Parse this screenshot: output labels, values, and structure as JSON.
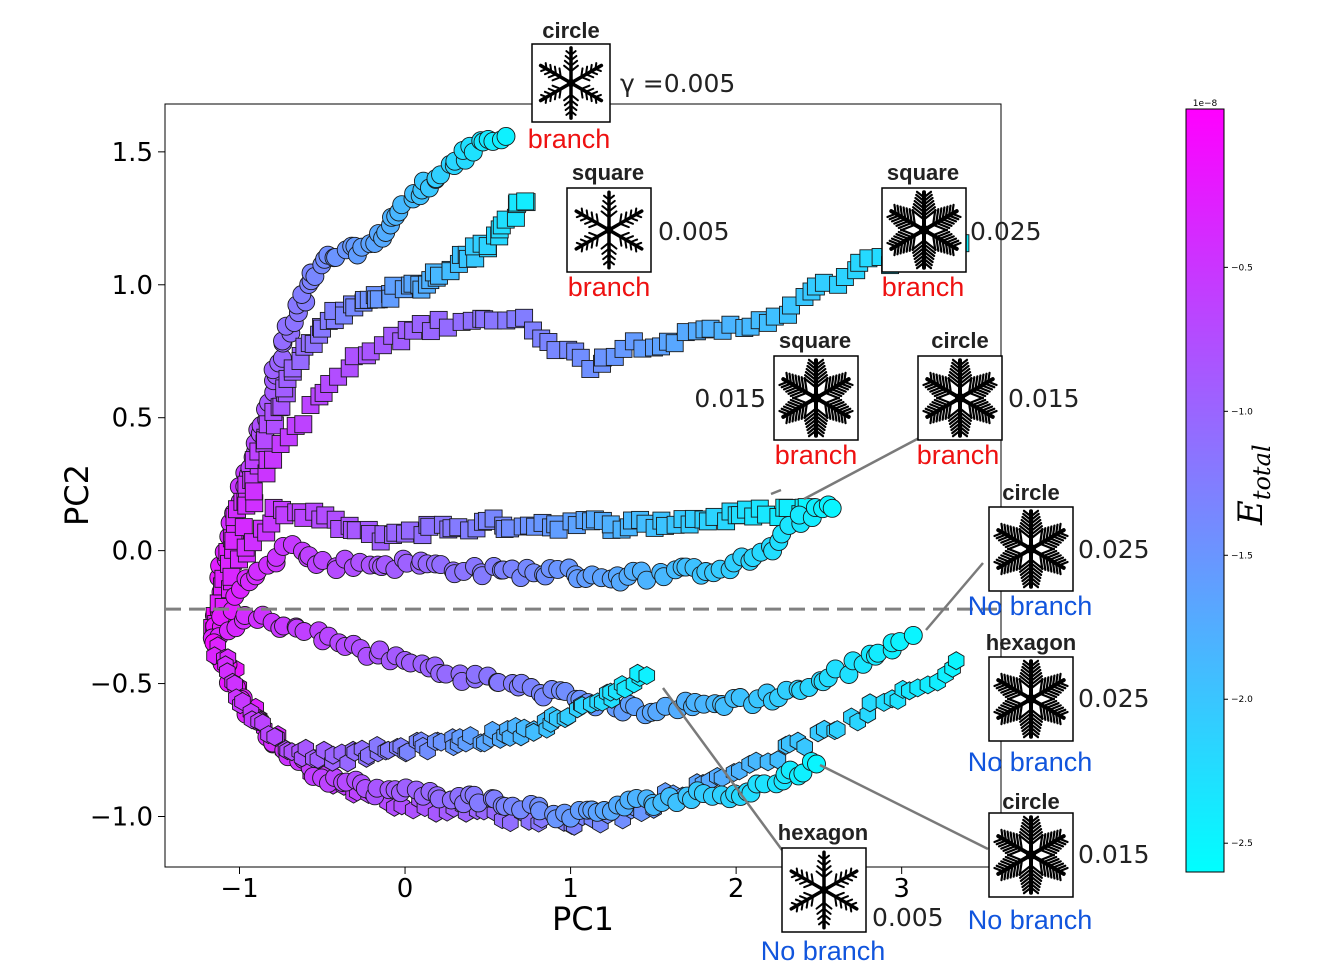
{
  "chart_data": {
    "type": "scatter",
    "xlabel": "PC1",
    "ylabel": "PC2",
    "xlim": [
      -1.45,
      3.6
    ],
    "ylim": [
      -1.19,
      1.68
    ],
    "xticks": [
      "−1",
      "0",
      "1",
      "2",
      "3"
    ],
    "xtick_values": [
      -1,
      0,
      1,
      2,
      3
    ],
    "yticks": [
      "−1.0",
      "−0.5",
      "0.0",
      "0.5",
      "1.0",
      "1.5"
    ],
    "ytick_values": [
      -1.0,
      -0.5,
      0.0,
      0.5,
      1.0,
      1.5
    ],
    "grid": false,
    "threshold_line": {
      "y": -0.22,
      "style": "dashed",
      "color": "#808080"
    },
    "colorbar": {
      "label": "E",
      "label_subscript": "total",
      "offset_text": "1e−8",
      "min": -2.6,
      "max": 0.05,
      "ticks": [
        "−0.5",
        "−1.0",
        "−1.5",
        "−2.0",
        "−2.5"
      ],
      "tick_values": [
        -0.5,
        -1.0,
        -1.5,
        -2.0,
        -2.5
      ],
      "color_low": "#00ffff",
      "color_high": "#ff00ff"
    },
    "series": [
      {
        "marker": "circle",
        "gamma": "γ =0.005",
        "branch": "branch",
        "path": [
          [
            -1.15,
            -0.35
          ],
          [
            -1.1,
            -0.05
          ],
          [
            -1.0,
            0.22
          ],
          [
            -0.85,
            0.5
          ],
          [
            -0.72,
            0.8
          ],
          [
            -0.58,
            1.0
          ],
          [
            -0.45,
            1.1
          ],
          [
            -0.2,
            1.15
          ],
          [
            0.0,
            1.3
          ],
          [
            0.25,
            1.44
          ],
          [
            0.45,
            1.52
          ],
          [
            0.6,
            1.55
          ]
        ],
        "e_start": 0.0,
        "e_end": -2.45
      },
      {
        "marker": "square",
        "gamma": "0.005",
        "branch": "branch",
        "path": [
          [
            -1.15,
            -0.3
          ],
          [
            -1.0,
            0.15
          ],
          [
            -0.85,
            0.4
          ],
          [
            -0.7,
            0.65
          ],
          [
            -0.5,
            0.85
          ],
          [
            -0.2,
            0.95
          ],
          [
            0.1,
            1.0
          ],
          [
            0.3,
            1.08
          ],
          [
            0.5,
            1.15
          ],
          [
            0.62,
            1.25
          ],
          [
            0.75,
            1.33
          ]
        ],
        "e_start": 0.0,
        "e_end": -2.4
      },
      {
        "marker": "square",
        "gamma": "0.025",
        "branch": "branch",
        "path": [
          [
            -1.15,
            -0.3
          ],
          [
            -1.0,
            0.1
          ],
          [
            -0.8,
            0.35
          ],
          [
            -0.55,
            0.55
          ],
          [
            -0.3,
            0.72
          ],
          [
            0.0,
            0.82
          ],
          [
            0.4,
            0.88
          ],
          [
            0.7,
            0.86
          ],
          [
            0.9,
            0.78
          ],
          [
            1.1,
            0.7
          ],
          [
            1.4,
            0.78
          ],
          [
            1.7,
            0.8
          ],
          [
            2.0,
            0.84
          ],
          [
            2.3,
            0.9
          ],
          [
            2.55,
            1.0
          ],
          [
            2.8,
            1.08
          ],
          [
            3.1,
            1.12
          ],
          [
            3.35,
            1.16
          ]
        ],
        "e_start": -0.2,
        "e_end": -2.45
      },
      {
        "marker": "square",
        "gamma": "0.015",
        "branch": "branch",
        "path": [
          [
            -1.15,
            -0.3
          ],
          [
            -1.0,
            -0.05
          ],
          [
            -0.8,
            0.15
          ],
          [
            -0.5,
            0.12
          ],
          [
            -0.2,
            0.05
          ],
          [
            0.1,
            0.08
          ],
          [
            0.5,
            0.1
          ],
          [
            1.0,
            0.1
          ],
          [
            1.5,
            0.1
          ],
          [
            2.0,
            0.13
          ],
          [
            2.3,
            0.15
          ],
          [
            2.45,
            0.16
          ]
        ],
        "e_start": -0.2,
        "e_end": -2.5
      },
      {
        "marker": "circle",
        "gamma": "0.015",
        "branch": "branch",
        "path": [
          [
            -1.15,
            -0.3
          ],
          [
            -0.95,
            -0.1
          ],
          [
            -0.7,
            0.02
          ],
          [
            -0.5,
            -0.05
          ],
          [
            -0.2,
            -0.05
          ],
          [
            0.1,
            -0.05
          ],
          [
            0.5,
            -0.08
          ],
          [
            0.9,
            -0.08
          ],
          [
            1.3,
            -0.1
          ],
          [
            1.7,
            -0.08
          ],
          [
            2.0,
            -0.05
          ],
          [
            2.25,
            0.02
          ],
          [
            2.45,
            0.15
          ],
          [
            2.6,
            0.18
          ]
        ],
        "e_start": -0.2,
        "e_end": -2.5
      },
      {
        "marker": "circle",
        "gamma": "0.025",
        "branch": "No branch",
        "path": [
          [
            -1.15,
            -0.35
          ],
          [
            -0.95,
            -0.25
          ],
          [
            -0.7,
            -0.28
          ],
          [
            -0.4,
            -0.35
          ],
          [
            -0.1,
            -0.4
          ],
          [
            0.2,
            -0.45
          ],
          [
            0.6,
            -0.5
          ],
          [
            1.0,
            -0.55
          ],
          [
            1.4,
            -0.6
          ],
          [
            1.8,
            -0.58
          ],
          [
            2.2,
            -0.55
          ],
          [
            2.5,
            -0.5
          ],
          [
            2.8,
            -0.4
          ],
          [
            3.05,
            -0.32
          ]
        ],
        "e_start": -0.3,
        "e_end": -2.5
      },
      {
        "marker": "hexagon",
        "gamma": "0.025",
        "branch": "No branch",
        "path": [
          [
            -1.15,
            -0.35
          ],
          [
            -1.0,
            -0.5
          ],
          [
            -0.8,
            -0.7
          ],
          [
            -0.5,
            -0.85
          ],
          [
            -0.2,
            -0.93
          ],
          [
            0.2,
            -0.97
          ],
          [
            0.6,
            -1.0
          ],
          [
            1.0,
            -1.02
          ],
          [
            1.3,
            -1.0
          ],
          [
            1.7,
            -0.9
          ],
          [
            2.1,
            -0.8
          ],
          [
            2.5,
            -0.7
          ],
          [
            2.8,
            -0.6
          ],
          [
            3.1,
            -0.52
          ],
          [
            3.35,
            -0.42
          ]
        ],
        "e_start": -0.1,
        "e_end": -2.5
      },
      {
        "marker": "circle",
        "gamma": "0.015",
        "branch": "No branch",
        "path": [
          [
            -1.15,
            -0.35
          ],
          [
            -1.0,
            -0.55
          ],
          [
            -0.8,
            -0.72
          ],
          [
            -0.5,
            -0.85
          ],
          [
            -0.2,
            -0.9
          ],
          [
            0.2,
            -0.92
          ],
          [
            0.6,
            -0.95
          ],
          [
            1.0,
            -1.0
          ],
          [
            1.4,
            -0.95
          ],
          [
            1.8,
            -0.92
          ],
          [
            2.1,
            -0.9
          ],
          [
            2.3,
            -0.85
          ],
          [
            2.5,
            -0.8
          ]
        ],
        "e_start": -0.1,
        "e_end": -2.5
      },
      {
        "marker": "hexagon",
        "gamma": "0.005",
        "branch": "No branch",
        "path": [
          [
            -1.15,
            -0.35
          ],
          [
            -0.95,
            -0.6
          ],
          [
            -0.7,
            -0.75
          ],
          [
            -0.4,
            -0.78
          ],
          [
            -0.1,
            -0.75
          ],
          [
            0.3,
            -0.72
          ],
          [
            0.7,
            -0.68
          ],
          [
            1.0,
            -0.62
          ],
          [
            1.2,
            -0.55
          ],
          [
            1.35,
            -0.5
          ],
          [
            1.45,
            -0.46
          ]
        ],
        "e_start": -0.3,
        "e_end": -2.45
      }
    ],
    "annotations": [
      {
        "shape": "circle",
        "gamma": "γ =0.005",
        "branch": "branch",
        "status": "branch",
        "dendrite": "thin"
      },
      {
        "shape": "square",
        "gamma": "0.005",
        "branch": "branch",
        "status": "branch",
        "dendrite": "thin"
      },
      {
        "shape": "square",
        "gamma": "0.025",
        "branch": "branch",
        "status": "branch",
        "dendrite": "dense"
      },
      {
        "shape": "square",
        "gamma": "0.015",
        "branch": "branch",
        "status": "branch",
        "dendrite": "dense"
      },
      {
        "shape": "circle",
        "gamma": "0.015",
        "branch": "branch",
        "status": "branch",
        "dendrite": "dense"
      },
      {
        "shape": "circle",
        "gamma": "0.025",
        "branch": "No branch",
        "status": "no-branch",
        "dendrite": "dense"
      },
      {
        "shape": "hexagon",
        "gamma": "0.025",
        "branch": "No branch",
        "status": "no-branch",
        "dendrite": "dense"
      },
      {
        "shape": "circle",
        "gamma": "0.015",
        "branch": "No branch",
        "status": "no-branch",
        "dendrite": "dense"
      },
      {
        "shape": "hexagon",
        "gamma": "0.005",
        "branch": "No branch",
        "status": "no-branch",
        "dendrite": "thin"
      }
    ],
    "status_colors": {
      "branch": "#ee1111",
      "no-branch": "#1155dd"
    }
  }
}
